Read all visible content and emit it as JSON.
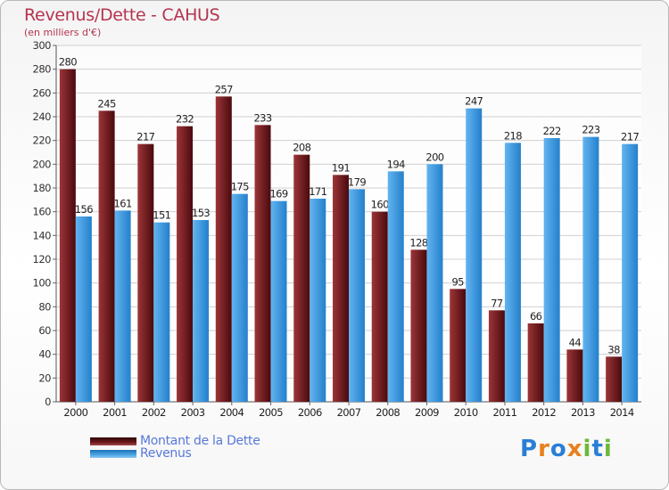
{
  "header": {
    "title": "Revenus/Dette - CAHUS",
    "subtitle": "(en milliers d'€)"
  },
  "legend": [
    {
      "label": "Montant de la Dette",
      "color_top": "#3a0d0d",
      "color_bottom": "#8b2a2a"
    },
    {
      "label": "Revenus",
      "color_top": "#1e6fb8",
      "color_bottom": "#5aaee8"
    }
  ],
  "logo": {
    "letters": [
      "P",
      "r",
      "o",
      "x",
      "i",
      "t",
      "i"
    ],
    "colors": [
      "#2a7fd4",
      "#e8801e",
      "#2a7fd4",
      "#e8801e",
      "#6cb83a",
      "#2a7fd4",
      "#6cb83a"
    ]
  },
  "colors": {
    "dette_light": "#9c3538",
    "dette_dark": "#4a0a0d",
    "revenus_light": "#62b4ef",
    "revenus_dark": "#2480cc",
    "grid": "#d0d0d0",
    "title": "#b5334f",
    "legend_text": "#5878d8"
  },
  "chart_data": {
    "type": "bar",
    "categories": [
      "2000",
      "2001",
      "2002",
      "2003",
      "2004",
      "2005",
      "2006",
      "2007",
      "2008",
      "2009",
      "2010",
      "2011",
      "2012",
      "2013",
      "2014"
    ],
    "series": [
      {
        "name": "Montant de la Dette",
        "values": [
          280,
          245,
          217,
          232,
          257,
          233,
          208,
          191,
          160,
          128,
          95,
          77,
          66,
          44,
          38
        ]
      },
      {
        "name": "Revenus",
        "values": [
          156,
          161,
          151,
          153,
          175,
          169,
          171,
          179,
          194,
          200,
          247,
          218,
          222,
          223,
          217
        ]
      }
    ],
    "yticks": [
      0,
      20,
      40,
      60,
      80,
      100,
      120,
      140,
      160,
      180,
      200,
      220,
      240,
      260,
      280,
      300
    ],
    "ylim": [
      0,
      300
    ],
    "grid": true,
    "legend_position": "bottom-left"
  }
}
